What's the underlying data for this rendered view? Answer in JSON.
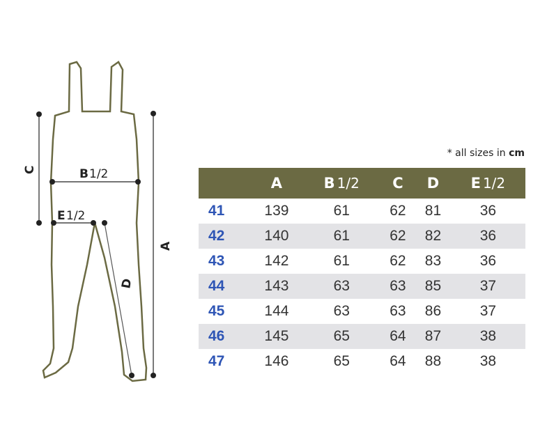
{
  "figure": {
    "labels": {
      "a": "A",
      "b": "B",
      "b_half": "1/2",
      "c": "C",
      "d": "D",
      "e": "E",
      "e_half": "1/2"
    },
    "outline_color": "#6b6a43"
  },
  "note": {
    "prefix": "* all sizes in ",
    "unit": "cm"
  },
  "table": {
    "header_color": "#6b6a43",
    "columns": [
      {
        "letter": "A",
        "suffix": ""
      },
      {
        "letter": "B",
        "suffix": "1/2"
      },
      {
        "letter": "C",
        "suffix": ""
      },
      {
        "letter": "D",
        "suffix": ""
      },
      {
        "letter": "E",
        "suffix": "1/2"
      }
    ],
    "rows": [
      {
        "size": "41",
        "values": [
          "139",
          "61",
          "62",
          "81",
          "36"
        ]
      },
      {
        "size": "42",
        "values": [
          "140",
          "61",
          "62",
          "82",
          "36"
        ]
      },
      {
        "size": "43",
        "values": [
          "142",
          "61",
          "62",
          "83",
          "36"
        ]
      },
      {
        "size": "44",
        "values": [
          "143",
          "63",
          "63",
          "85",
          "37"
        ]
      },
      {
        "size": "45",
        "values": [
          "144",
          "63",
          "63",
          "86",
          "37"
        ]
      },
      {
        "size": "46",
        "values": [
          "145",
          "65",
          "64",
          "87",
          "38"
        ]
      },
      {
        "size": "47",
        "values": [
          "146",
          "65",
          "64",
          "88",
          "38"
        ]
      }
    ]
  }
}
